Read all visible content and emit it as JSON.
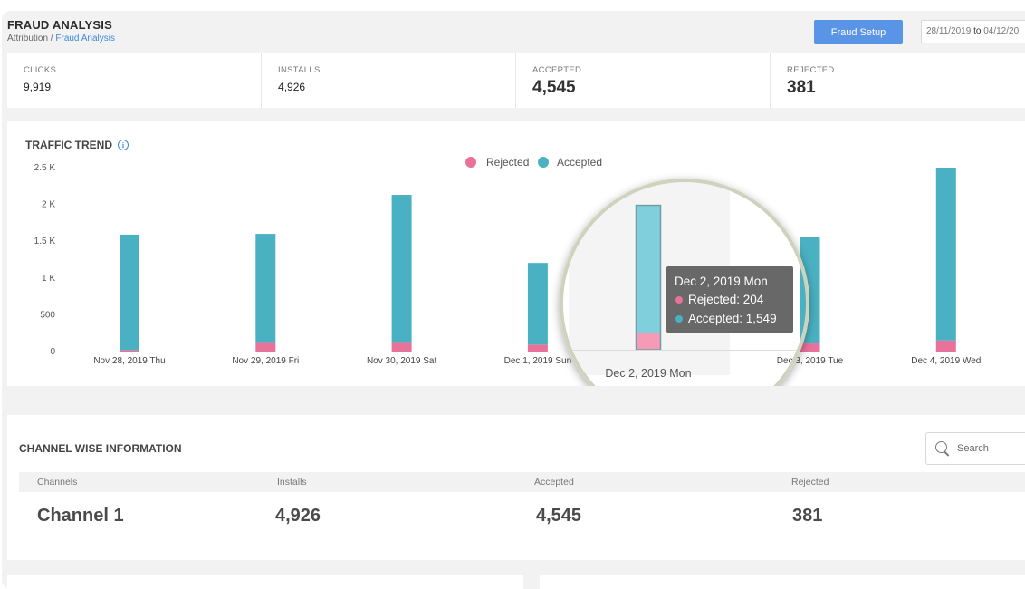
{
  "header": {
    "title": "FRAUD ANALYSIS",
    "breadcrumb_root": "Attribution",
    "breadcrumb_sep": " / ",
    "breadcrumb_current": "Fraud Analysis",
    "setup_button": "Fraud Setup",
    "date_from": "28/11/2019",
    "date_to_word": "to",
    "date_to": "04/12/20"
  },
  "stats": [
    {
      "label": "CLICKS",
      "value": "9,919"
    },
    {
      "label": "INSTALLS",
      "value": "4,926"
    },
    {
      "label": "ACCEPTED",
      "value": "4,545"
    },
    {
      "label": "REJECTED",
      "value": "381"
    }
  ],
  "trend": {
    "title": "TRAFFIC TREND",
    "info_icon": "info-icon"
  },
  "chart_data": {
    "type": "bar",
    "stacked": true,
    "categories": [
      "Nov 28, 2019 Thu",
      "Nov 29, 2019 Fri",
      "Nov 30, 2019 Sat",
      "Dec 1, 2019 Sun",
      "Dec 2, 2019 Mon",
      "Dec 3, 2019 Tue",
      "Dec 4, 2019 Wed"
    ],
    "series": [
      {
        "name": "Rejected",
        "color": "#e8729a",
        "values": [
          20,
          130,
          130,
          95,
          204,
          110,
          150
        ]
      },
      {
        "name": "Accepted",
        "color": "#49b1c2",
        "values": [
          1570,
          1470,
          2000,
          1110,
          1549,
          1450,
          2350
        ]
      }
    ],
    "y_ticks": [
      "0",
      "500",
      "1 K",
      "1.5 K",
      "2 K",
      "2.5 K"
    ],
    "ylim": [
      0,
      2500
    ],
    "legend_position": "top-center",
    "tooltip": {
      "title": "Dec 2, 2019 Mon",
      "rejected_text": "Rejected: 204",
      "accepted_text": "Accepted: 1,549"
    },
    "magnified_index": 4
  },
  "channel": {
    "title": "CHANNEL WISE INFORMATION",
    "search_placeholder": "Search",
    "columns": [
      "Channels",
      "Installs",
      "Accepted",
      "Rejected"
    ],
    "rows": [
      [
        "Channel 1",
        "4,926",
        "4,545",
        "381"
      ]
    ]
  }
}
